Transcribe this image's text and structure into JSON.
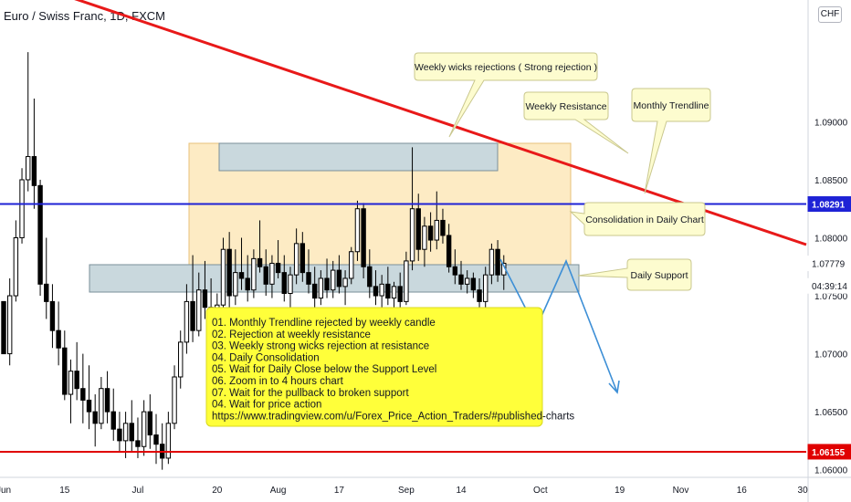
{
  "header": {
    "title": "Euro / Swiss Franc, 1D, FXCM",
    "currency": "CHF"
  },
  "chart_data": {
    "type": "candlestick",
    "ylim": [
      1.0595,
      1.1005
    ],
    "y_ticks": [
      {
        "label": "1.09000",
        "value": 1.09
      },
      {
        "label": "1.08500",
        "value": 1.085
      },
      {
        "label": "1.08000",
        "value": 1.08
      },
      {
        "label": "1.07500",
        "value": 1.075
      },
      {
        "label": "1.07000",
        "value": 1.07
      },
      {
        "label": "1.06500",
        "value": 1.065
      },
      {
        "label": "1.06000",
        "value": 1.06
      }
    ],
    "x_ticks": [
      {
        "label": "Jun",
        "i": 0
      },
      {
        "label": "15",
        "i": 10
      },
      {
        "label": "Jul",
        "i": 22
      },
      {
        "label": "20",
        "i": 35
      },
      {
        "label": "Aug",
        "i": 45
      },
      {
        "label": "17",
        "i": 55
      },
      {
        "label": "Sep",
        "i": 66
      },
      {
        "label": "14",
        "i": 75
      },
      {
        "label": "Oct",
        "i": 88
      },
      {
        "label": "19",
        "i": 101
      },
      {
        "label": "Nov",
        "i": 111
      },
      {
        "label": "16",
        "i": 121
      },
      {
        "label": "30",
        "i": 131
      }
    ],
    "price_tags": [
      {
        "label": "1.08291",
        "value": 1.08291,
        "color": "#1e22d6"
      },
      {
        "label": "1.07779",
        "value": 1.07779,
        "color": "#ffffff"
      },
      {
        "label": "04:39:14",
        "value": 1.07585,
        "color": "#ffffff"
      },
      {
        "label": "1.06155",
        "value": 1.06155,
        "color": "#e00000"
      }
    ],
    "candles": [
      [
        1.0745,
        1.0745,
        1.07,
        1.07
      ],
      [
        1.07,
        1.0765,
        1.069,
        1.075
      ],
      [
        1.075,
        1.0815,
        1.0745,
        1.08
      ],
      [
        1.08,
        1.086,
        1.0795,
        1.085
      ],
      [
        1.085,
        1.096,
        1.084,
        1.087
      ],
      [
        1.087,
        1.092,
        1.0825,
        1.0845
      ],
      [
        1.0845,
        1.085,
        1.075,
        1.076
      ],
      [
        1.076,
        1.08,
        1.073,
        1.0745
      ],
      [
        1.0745,
        1.076,
        1.0705,
        1.072
      ],
      [
        1.072,
        1.0745,
        1.069,
        1.0705
      ],
      [
        1.0705,
        1.072,
        1.066,
        1.0665
      ],
      [
        1.0665,
        1.0695,
        1.064,
        1.0685
      ],
      [
        1.0685,
        1.071,
        1.066,
        1.067
      ],
      [
        1.067,
        1.07,
        1.064,
        1.066
      ],
      [
        1.066,
        1.069,
        1.0635,
        1.065
      ],
      [
        1.065,
        1.0665,
        1.062,
        1.064
      ],
      [
        1.064,
        1.068,
        1.0635,
        1.067
      ],
      [
        1.067,
        1.0685,
        1.064,
        1.065
      ],
      [
        1.065,
        1.067,
        1.0625,
        1.0635
      ],
      [
        1.0635,
        1.065,
        1.0615,
        1.0625
      ],
      [
        1.0625,
        1.065,
        1.061,
        1.064
      ],
      [
        1.064,
        1.066,
        1.0615,
        1.0625
      ],
      [
        1.0625,
        1.0645,
        1.061,
        1.062
      ],
      [
        1.062,
        1.066,
        1.0612,
        1.065
      ],
      [
        1.065,
        1.0665,
        1.0618,
        1.063
      ],
      [
        1.063,
        1.0648,
        1.0605,
        1.0622
      ],
      [
        1.0622,
        1.064,
        1.06,
        1.061
      ],
      [
        1.061,
        1.065,
        1.0605,
        1.064
      ],
      [
        1.064,
        1.069,
        1.0635,
        1.068
      ],
      [
        1.068,
        1.072,
        1.067,
        1.071
      ],
      [
        1.071,
        1.076,
        1.07,
        1.0745
      ],
      [
        1.0745,
        1.0785,
        1.071,
        1.072
      ],
      [
        1.072,
        1.077,
        1.0715,
        1.0755
      ],
      [
        1.0755,
        1.078,
        1.073,
        1.074
      ],
      [
        1.074,
        1.0765,
        1.0722,
        1.073
      ],
      [
        1.073,
        1.0752,
        1.0712,
        1.0742
      ],
      [
        1.0742,
        1.08,
        1.0738,
        1.079
      ],
      [
        1.079,
        1.0805,
        1.074,
        1.075
      ],
      [
        1.075,
        1.079,
        1.0742,
        1.077
      ],
      [
        1.077,
        1.08,
        1.0755,
        1.0765
      ],
      [
        1.0765,
        1.0785,
        1.0745,
        1.0755
      ],
      [
        1.0755,
        1.079,
        1.0748,
        1.0782
      ],
      [
        1.0782,
        1.0815,
        1.077,
        1.0775
      ],
      [
        1.0775,
        1.079,
        1.075,
        1.076
      ],
      [
        1.076,
        1.0785,
        1.0748,
        1.0778
      ],
      [
        1.0778,
        1.0798,
        1.0765,
        1.077
      ],
      [
        1.077,
        1.0785,
        1.0745,
        1.0752
      ],
      [
        1.0752,
        1.0775,
        1.074,
        1.0768
      ],
      [
        1.0768,
        1.0808,
        1.076,
        1.0795
      ],
      [
        1.0795,
        1.0805,
        1.0762,
        1.077
      ],
      [
        1.077,
        1.079,
        1.0752,
        1.076
      ],
      [
        1.076,
        1.0775,
        1.074,
        1.0748
      ],
      [
        1.0748,
        1.0772,
        1.0742,
        1.0765
      ],
      [
        1.0765,
        1.0782,
        1.0748,
        1.0755
      ],
      [
        1.0755,
        1.078,
        1.0748,
        1.0772
      ],
      [
        1.0772,
        1.0785,
        1.0752,
        1.0758
      ],
      [
        1.0758,
        1.0772,
        1.0742,
        1.0765
      ],
      [
        1.0765,
        1.0792,
        1.076,
        1.0788
      ],
      [
        1.0788,
        1.0832,
        1.078,
        1.0825
      ],
      [
        1.0825,
        1.083,
        1.0765,
        1.0775
      ],
      [
        1.0775,
        1.079,
        1.0748,
        1.0758
      ],
      [
        1.0758,
        1.0772,
        1.0742,
        1.075
      ],
      [
        1.075,
        1.0768,
        1.0738,
        1.076
      ],
      [
        1.076,
        1.0775,
        1.0742,
        1.0748
      ],
      [
        1.0748,
        1.0762,
        1.0735,
        1.0758
      ],
      [
        1.0758,
        1.077,
        1.074,
        1.0745
      ],
      [
        1.0745,
        1.0788,
        1.0742,
        1.078
      ],
      [
        1.078,
        1.0878,
        1.0772,
        1.0825
      ],
      [
        1.0825,
        1.0838,
        1.078,
        1.079
      ],
      [
        1.079,
        1.0818,
        1.0775,
        1.081
      ],
      [
        1.081,
        1.0822,
        1.0788,
        1.0798
      ],
      [
        1.0798,
        1.084,
        1.079,
        1.0815
      ],
      [
        1.0815,
        1.0825,
        1.0795,
        1.0802
      ],
      [
        1.0802,
        1.0812,
        1.077,
        1.0775
      ],
      [
        1.0775,
        1.079,
        1.076,
        1.0768
      ],
      [
        1.0768,
        1.078,
        1.0755,
        1.076
      ],
      [
        1.076,
        1.0772,
        1.0752,
        1.0765
      ],
      [
        1.0765,
        1.077,
        1.0748,
        1.0755
      ],
      [
        1.0755,
        1.0765,
        1.073,
        1.0745
      ],
      [
        1.0745,
        1.0775,
        1.074,
        1.0768
      ],
      [
        1.0768,
        1.0795,
        1.076,
        1.079
      ],
      [
        1.079,
        1.0798,
        1.0762,
        1.0768
      ],
      [
        1.0768,
        1.0785,
        1.0755,
        1.0778
      ]
    ]
  },
  "annotations": {
    "weekly_wicks": "Weekly wicks rejections ( Strong rejection )",
    "weekly_resistance": "Weekly Resistance",
    "monthly_trendline": "Monthly Trendline",
    "consolidation": "Consolidation in Daily Chart",
    "daily_support": "Daily Support",
    "plan": [
      "01. Monthly Trendline rejected by weekly candle",
      "02. Rejection at weekly resistance",
      "03. Weekly strong wicks rejection at resistance",
      "04. Daily Consolidation",
      "05. Wait for Daily Close below the Support Level",
      "06. Zoom in to 4 hours chart",
      "07. Wait for the pullback to broken support",
      "04. Wait for price action",
      "https://www.tradingview.com/u/Forex_Price_Action_Traders/#published-charts"
    ]
  },
  "colors": {
    "up": "#ffffff",
    "down": "#000000",
    "trendline": "#e81919",
    "resistance": "#1e22d6",
    "support_line": "#e00000",
    "consolidation_fill": "#fdebc4",
    "zone_fill": "#c9d8dd",
    "note_fill": "#ffff3a",
    "callout_fill": "#fdfccf",
    "projection": "#3d8fd6"
  }
}
